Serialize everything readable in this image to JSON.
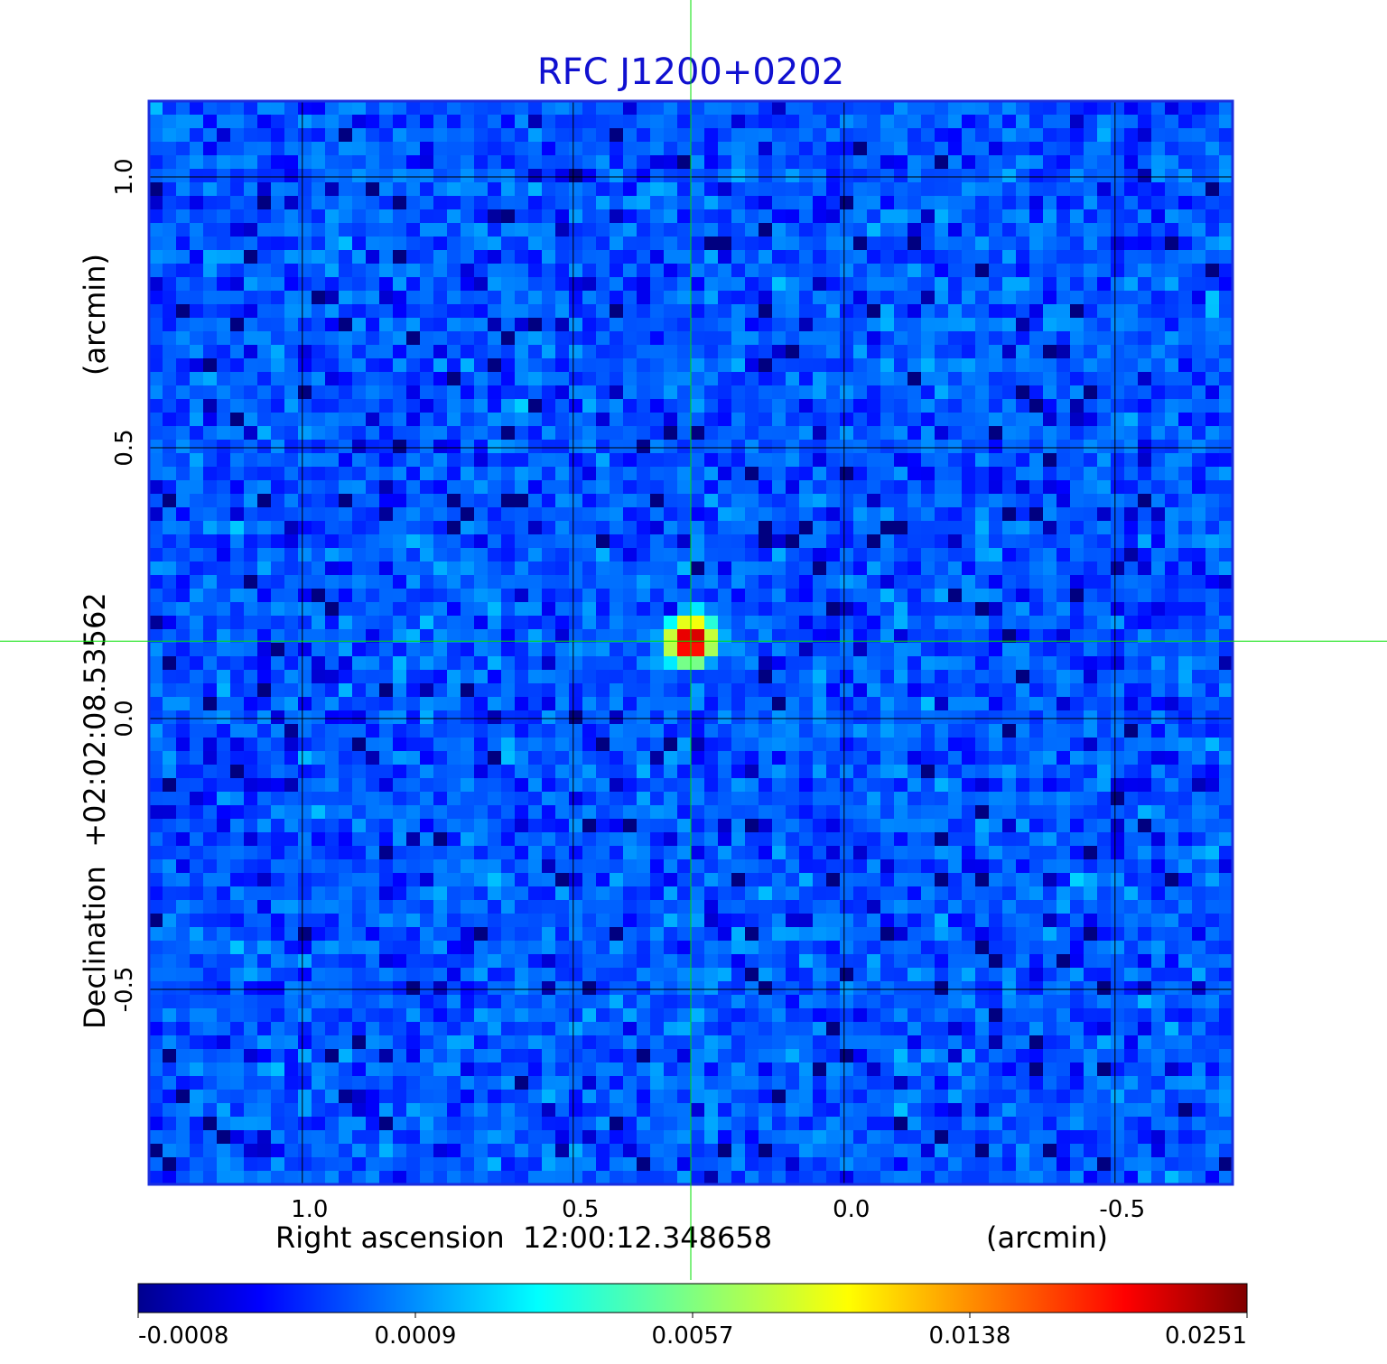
{
  "chart_data": {
    "type": "heatmap",
    "title": "RFC J1200+0202",
    "x_axis": {
      "label_left": "Right ascension  12:00:12.348658",
      "label_right": "(arcmin)",
      "ticks": [
        1.0,
        0.5,
        0.0,
        -0.5
      ],
      "tick_labels": [
        "1.0",
        "0.5",
        "0.0",
        "-0.5"
      ],
      "range": [
        1.283,
        -0.717
      ]
    },
    "y_axis": {
      "label_left": "Declination  +02:02:08.53562",
      "label_right": "(arcmin)",
      "ticks": [
        -0.5,
        0.0,
        0.5,
        1.0
      ],
      "tick_labels": [
        "-0.5",
        "0.0",
        "0.5",
        "1.0"
      ],
      "range": [
        -0.86,
        1.14
      ]
    },
    "grid": true,
    "crosshair": {
      "x": 0.283,
      "y": 0.143,
      "color": "#00e000"
    },
    "source": {
      "x": 0.283,
      "y": 0.143,
      "peak": 0.0251,
      "background": 0.0
    },
    "colormap": "jet",
    "colorbar": {
      "ticks": [
        "-0.0008",
        "0.0009",
        "0.0057",
        "0.0138",
        "0.0251"
      ],
      "min": -0.0008,
      "max": 0.0251
    },
    "noise_level": 0.0004
  },
  "colors": {
    "title": "#1010d0",
    "frame": "#1a2fe0",
    "grid": "#000000",
    "crosshair": "#00e000"
  }
}
